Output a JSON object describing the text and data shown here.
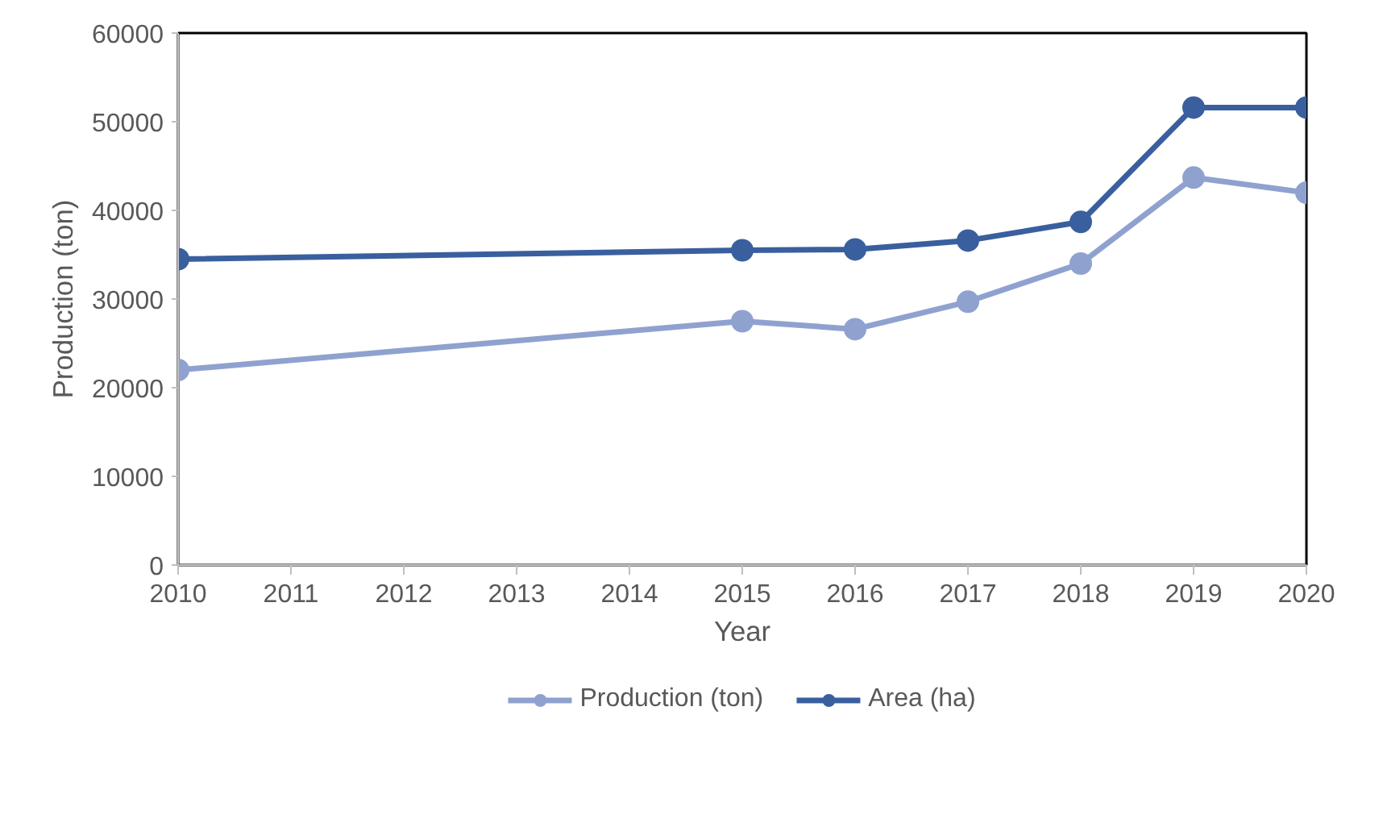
{
  "chart_data": {
    "type": "line",
    "xlabel": "Year",
    "ylabel": "Production (ton)",
    "x": [
      2010,
      2015,
      2016,
      2017,
      2018,
      2019,
      2020
    ],
    "series": [
      {
        "name": "Production (ton)",
        "color": "#8fa2cf",
        "values": [
          22000,
          27500,
          26600,
          29700,
          34000,
          43700,
          42000
        ]
      },
      {
        "name": "Area (ha)",
        "color": "#3a5f9e",
        "values": [
          34500,
          35500,
          35600,
          36600,
          38700,
          51600,
          51600
        ]
      }
    ],
    "xlim": [
      2010,
      2020
    ],
    "xticks": [
      2010,
      2011,
      2012,
      2013,
      2014,
      2015,
      2016,
      2017,
      2018,
      2019,
      2020
    ],
    "ylim": [
      0,
      60000
    ],
    "yticks": [
      0,
      10000,
      20000,
      30000,
      40000,
      50000,
      60000
    ],
    "grid": false,
    "legend": "bottom",
    "marker": "circle",
    "line_style": "solid"
  }
}
